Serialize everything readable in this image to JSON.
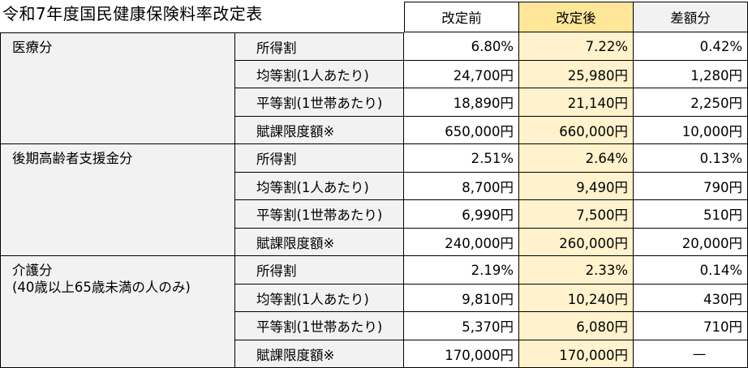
{
  "title": "令和7年度国民健康保険料率改定表",
  "headers": {
    "before": "改定前",
    "after": "改定後",
    "diff": "差額分"
  },
  "categories": [
    {
      "name_lines": [
        "医療分"
      ],
      "rows": [
        {
          "item": "所得割",
          "before": "6.80%",
          "after": "7.22%",
          "diff": "0.42%"
        },
        {
          "item": "均等割(1人あたり)",
          "before": "24,700円",
          "after": "25,980円",
          "diff": "1,280円"
        },
        {
          "item": "平等割(1世帯あたり)",
          "before": "18,890円",
          "after": "21,140円",
          "diff": "2,250円"
        },
        {
          "item": "賦課限度額※",
          "before": "650,000円",
          "after": "660,000円",
          "diff": "10,000円"
        }
      ]
    },
    {
      "name_lines": [
        "後期高齢者支援金分"
      ],
      "rows": [
        {
          "item": "所得割",
          "before": "2.51%",
          "after": "2.64%",
          "diff": "0.13%"
        },
        {
          "item": "均等割(1人あたり)",
          "before": "8,700円",
          "after": "9,490円",
          "diff": "790円"
        },
        {
          "item": "平等割(1世帯あたり)",
          "before": "6,990円",
          "after": "7,500円",
          "diff": "510円"
        },
        {
          "item": "賦課限度額※",
          "before": "240,000円",
          "after": "260,000円",
          "diff": "20,000円"
        }
      ]
    },
    {
      "name_lines": [
        "介護分",
        "(40歳以上65歳未満の人のみ)"
      ],
      "rows": [
        {
          "item": "所得割",
          "before": "2.19%",
          "after": "2.33%",
          "diff": "0.14%"
        },
        {
          "item": "均等割(1人あたり)",
          "before": "9,810円",
          "after": "10,240円",
          "diff": "430円"
        },
        {
          "item": "平等割(1世帯あたり)",
          "before": "5,370円",
          "after": "6,080円",
          "diff": "710円"
        },
        {
          "item": "賦課限度額※",
          "before": "170,000円",
          "after": "170,000円",
          "diff": "—"
        }
      ]
    }
  ]
}
